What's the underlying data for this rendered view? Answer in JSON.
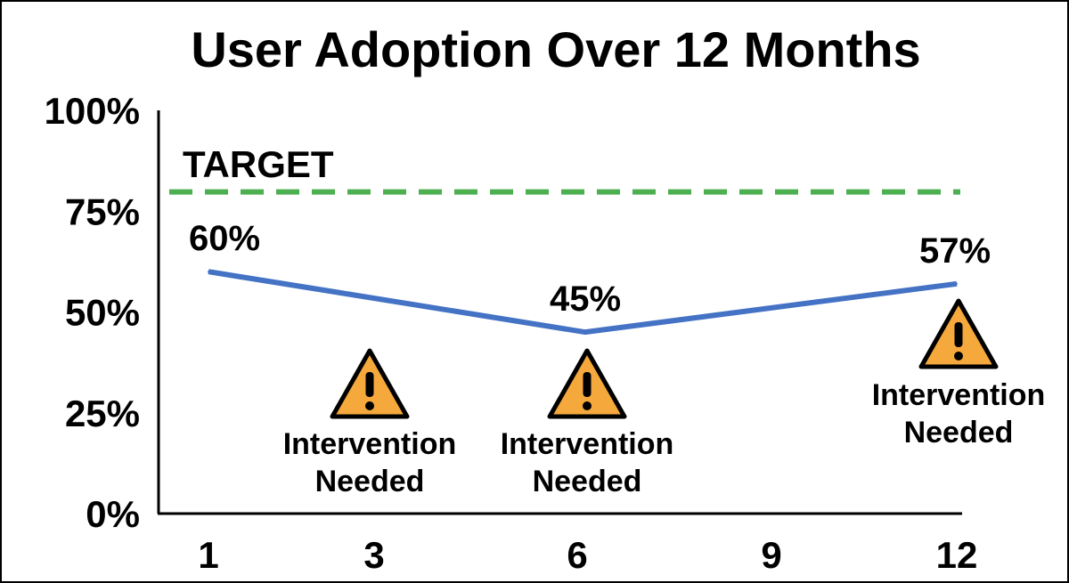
{
  "chart_data": {
    "type": "line",
    "title": "User Adoption Over 12 Months",
    "xlabel": "",
    "ylabel": "",
    "x": [
      1,
      6,
      12
    ],
    "series": [
      {
        "values": [
          60,
          45,
          57
        ],
        "labels": [
          "60%",
          "45%",
          "57%"
        ],
        "color": "#4472c4"
      }
    ],
    "x_ticks": [
      1,
      3,
      6,
      9,
      12
    ],
    "x_tick_labels": [
      "1",
      "3",
      "6",
      "9",
      "12"
    ],
    "y_ticks": [
      0,
      25,
      50,
      75,
      100
    ],
    "y_tick_labels": [
      "0%",
      "25%",
      "50%",
      "75%",
      "100%"
    ],
    "xlim": [
      1,
      12
    ],
    "ylim": [
      0,
      100
    ],
    "grid": false,
    "target": {
      "label": "TARGET",
      "value": 80,
      "color": "#4caf50"
    },
    "annotations": [
      {
        "x": 3.3,
        "text_lines": [
          "Intervention",
          "Needed"
        ],
        "icon": "warning-icon",
        "icon_color": "#f5a83c"
      },
      {
        "x": 6.1,
        "text_lines": [
          "Intervention",
          "Needed"
        ],
        "icon": "warning-icon",
        "icon_color": "#f5a83c"
      },
      {
        "x": 12.0,
        "text_lines": [
          "Intervention",
          "Needed"
        ],
        "icon": "warning-icon",
        "icon_color": "#f5a83c"
      }
    ]
  }
}
